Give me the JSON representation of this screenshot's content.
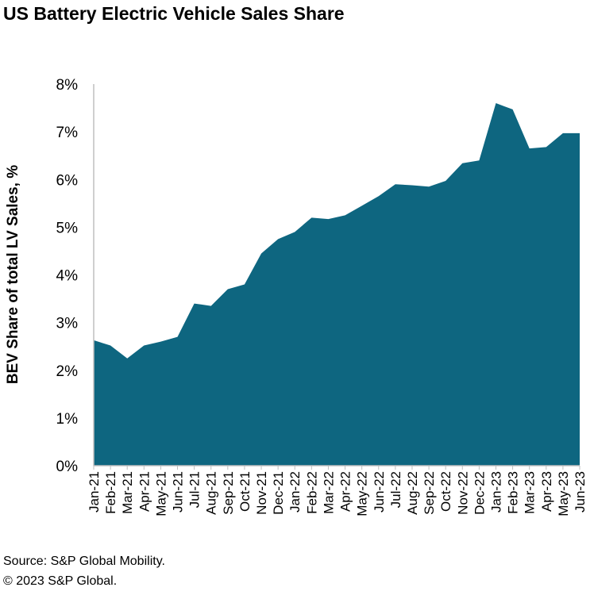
{
  "title": "US Battery Electric Vehicle Sales Share",
  "footer": {
    "source": "Source: S&P Global Mobility.",
    "copyright": "© 2023 S&P Global."
  },
  "colors": {
    "area": "#0e6680",
    "axis": "#bfbfbf"
  },
  "chart_data": {
    "type": "area",
    "title": "US Battery Electric Vehicle Sales Share",
    "xlabel": "",
    "ylabel": "BEV Share of total LV Sales, %",
    "ylim": [
      0,
      8
    ],
    "yticks": [
      "0%",
      "1%",
      "2%",
      "3%",
      "4%",
      "5%",
      "6%",
      "7%",
      "8%"
    ],
    "grid": false,
    "categories": [
      "Jan-21",
      "Feb-21",
      "Mar-21",
      "Apr-21",
      "May-21",
      "Jun-21",
      "Jul-21",
      "Aug-21",
      "Sep-21",
      "Oct-21",
      "Nov-21",
      "Dec-21",
      "Jan-22",
      "Feb-22",
      "Mar-22",
      "Apr-22",
      "May-22",
      "Jun-22",
      "Jul-22",
      "Aug-22",
      "Sep-22",
      "Oct-22",
      "Nov-22",
      "Dec-22",
      "Jan-23",
      "Feb-23",
      "Mar-23",
      "Apr-23",
      "May-23",
      "Jun-23"
    ],
    "series": [
      {
        "name": "BEV share",
        "values": [
          2.63,
          2.52,
          2.25,
          2.52,
          2.6,
          2.7,
          3.4,
          3.35,
          3.7,
          3.8,
          4.45,
          4.75,
          4.9,
          5.2,
          5.17,
          5.25,
          5.45,
          5.65,
          5.9,
          5.88,
          5.85,
          5.97,
          6.34,
          6.4,
          7.6,
          7.47,
          6.65,
          6.68,
          6.97,
          6.97
        ]
      }
    ]
  }
}
